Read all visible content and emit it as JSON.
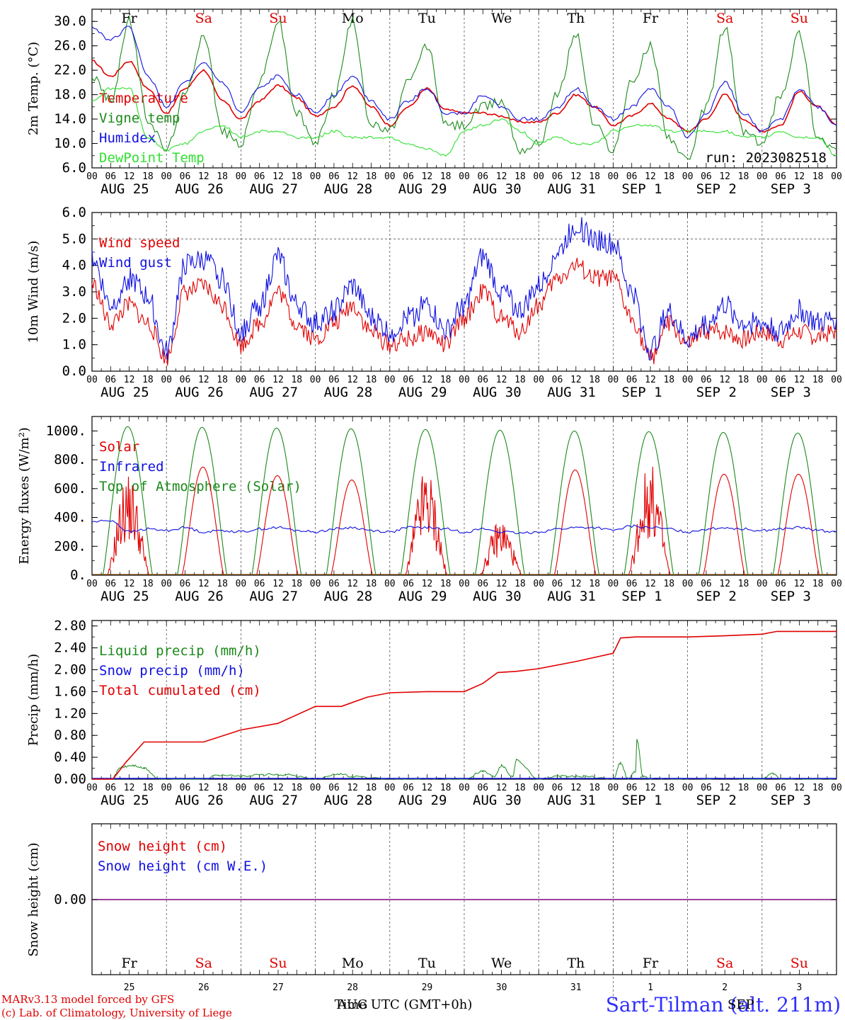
{
  "colors": {
    "red": "#e00000",
    "green": "#1a8a1a",
    "blue": "#1010e0",
    "lightgreen": "#30e030",
    "purple": "#800080"
  },
  "days": [
    "Fr",
    "Sa",
    "Su",
    "Mo",
    "Tu",
    "We",
    "Th",
    "Fr",
    "Sa",
    "Su"
  ],
  "weekend_days": [
    "Sa",
    "Su"
  ],
  "date_labels": [
    "AUG 25",
    "AUG 26",
    "AUG 27",
    "AUG 28",
    "AUG 29",
    "AUG 30",
    "AUG 31",
    "SEP  1",
    "SEP  2",
    "SEP  3"
  ],
  "hour_labels": [
    "00",
    "06",
    "12",
    "18"
  ],
  "hour_end_label": "00",
  "day_numbers": [
    "25",
    "26",
    "27",
    "28",
    "29",
    "30",
    "31",
    "1",
    "2",
    "3"
  ],
  "month_labels": [
    "AUG",
    "SEP"
  ],
  "x_axis_title": "Time UTC (GMT+0h)",
  "run_label": "run: 2023082518",
  "footer": [
    "MARv3.13 model forced by GFS",
    "(c) Lab. of Climatology, University of Liege"
  ],
  "station": "Sart-Tilman (alt. 211m)",
  "chart_data": [
    {
      "type": "line",
      "ylabel": "2m Temp. (°C)",
      "ylim": [
        6,
        32
      ],
      "yticks": [
        "30.0",
        "26.0",
        "22.0",
        "18.0",
        "14.0",
        "10.0",
        "6.0"
      ],
      "ytick_values": [
        30,
        26,
        22,
        18,
        14,
        10,
        6
      ],
      "x_days": [
        0,
        0.25,
        0.5,
        0.75,
        1,
        1.25,
        1.5,
        1.75,
        2,
        2.25,
        2.5,
        2.75,
        3,
        3.25,
        3.5,
        3.75,
        4,
        4.25,
        4.5,
        4.75,
        5,
        5.25,
        5.5,
        5.75,
        6,
        6.25,
        6.5,
        6.75,
        7,
        7.25,
        7.5,
        7.75,
        8,
        8.25,
        8.5,
        8.75,
        9,
        9.25,
        9.5,
        9.75,
        10
      ],
      "series": [
        {
          "name": "Temperature",
          "color": "red",
          "values": [
            23.5,
            21,
            23.5,
            19,
            15,
            19,
            22,
            17,
            14,
            17,
            19.5,
            17.5,
            14.5,
            16,
            19.5,
            16,
            13,
            16,
            19,
            15.5,
            15,
            15,
            14.5,
            13.5,
            13.5,
            15,
            18,
            16,
            13,
            14.5,
            16.5,
            14,
            12,
            14,
            18,
            14,
            12,
            13,
            18.5,
            16,
            13
          ]
        },
        {
          "name": "Vigne temp",
          "color": "green",
          "values": [
            21,
            17,
            30,
            14,
            9,
            18,
            28,
            12,
            10,
            20,
            30,
            15,
            10,
            18,
            30,
            13,
            12,
            20,
            26,
            13,
            13,
            16,
            17,
            9,
            10,
            18,
            28,
            13,
            9,
            20,
            26,
            11,
            7,
            16,
            29,
            12,
            10,
            18,
            28,
            11,
            9
          ]
        },
        {
          "name": "Humidex",
          "color": "blue",
          "values": [
            29,
            27,
            29,
            21,
            16,
            20,
            23,
            20,
            15,
            19,
            21,
            18,
            15,
            18,
            21,
            17,
            14,
            17,
            19,
            15,
            15,
            18,
            16,
            14,
            14,
            16,
            19,
            16,
            14,
            16,
            19,
            16,
            11,
            15,
            20,
            15,
            12,
            14,
            19,
            16,
            13
          ]
        },
        {
          "name": "DewPoint Temp",
          "color": "lightgreen",
          "values": [
            17,
            19,
            19,
            11,
            9,
            10,
            12,
            13,
            11,
            12,
            12,
            11,
            11,
            12,
            11,
            11,
            11,
            10,
            9,
            8,
            12,
            13,
            14,
            12,
            10,
            11,
            10,
            10,
            12,
            13,
            13,
            12,
            12,
            12,
            12,
            11,
            11,
            12,
            11,
            11,
            8
          ]
        }
      ]
    },
    {
      "type": "line",
      "ylabel": "10m Wind (m/s)",
      "ylim": [
        0,
        6
      ],
      "yticks": [
        "6.0",
        "5.0",
        "4.0",
        "3.0",
        "2.0",
        "1.0",
        "0.0"
      ],
      "ytick_values": [
        6,
        5,
        4,
        3,
        2,
        1,
        0
      ],
      "dotted_line": 5,
      "x_days": [
        0,
        0.25,
        0.5,
        0.75,
        1,
        1.25,
        1.5,
        1.75,
        2,
        2.25,
        2.5,
        2.75,
        3,
        3.25,
        3.5,
        3.75,
        4,
        4.25,
        4.5,
        4.75,
        5,
        5.25,
        5.5,
        5.75,
        6,
        6.25,
        6.5,
        6.75,
        7,
        7.25,
        7.5,
        7.75,
        8,
        8.25,
        8.5,
        8.75,
        9,
        9.25,
        9.5,
        9.75,
        10
      ],
      "series": [
        {
          "name": "Wind speed",
          "color": "red",
          "values": [
            3.3,
            1.8,
            2.5,
            1.8,
            0.5,
            3,
            3.2,
            2.5,
            1,
            1.8,
            3,
            1.8,
            1.2,
            1.8,
            2.5,
            1.5,
            1,
            1.2,
            1.5,
            1,
            2,
            3,
            2,
            1.5,
            2.5,
            3.5,
            4,
            3.5,
            3.5,
            2,
            0.5,
            1.8,
            1,
            1.5,
            1.5,
            1.2,
            1.5,
            1.2,
            1.5,
            1.3,
            1.5
          ]
        },
        {
          "name": "Wind gust",
          "color": "blue",
          "values": [
            4.3,
            2.5,
            3.5,
            2.8,
            0.7,
            4,
            4.2,
            3.5,
            1.5,
            2.5,
            4.3,
            2.5,
            1.8,
            2.3,
            3.2,
            2,
            1.5,
            2,
            2.5,
            1.5,
            2.5,
            4.3,
            3,
            2.3,
            3.2,
            4.5,
            5.5,
            5,
            4.8,
            3,
            0.8,
            2.2,
            1.2,
            1.8,
            2.5,
            1.8,
            1.8,
            1.5,
            2.3,
            1.8,
            2
          ]
        }
      ]
    },
    {
      "type": "line",
      "ylabel": "Energy fluxes (W/m²)",
      "ylim": [
        0,
        1100
      ],
      "yticks": [
        "1000.",
        "800.",
        "600.",
        "400.",
        "200.",
        "0."
      ],
      "ytick_values": [
        1000,
        800,
        600,
        400,
        200,
        0
      ],
      "toa_peaks": [
        1030,
        1025,
        1020,
        1015,
        1010,
        1005,
        1000,
        995,
        990,
        985
      ],
      "solar_peaks": [
        640,
        750,
        690,
        660,
        680,
        360,
        730,
        710,
        700,
        700
      ],
      "infrared_values": [
        370,
        380,
        300,
        320,
        310,
        330,
        300,
        310,
        300,
        320,
        330,
        310,
        300,
        320,
        330,
        310,
        300,
        330,
        330,
        320,
        300,
        320,
        300,
        290,
        300,
        320,
        330,
        330,
        310,
        340,
        330,
        320,
        300,
        320,
        330,
        320,
        310,
        320,
        330,
        310,
        300
      ],
      "series": [
        {
          "name": "Solar",
          "color": "red"
        },
        {
          "name": "Infrared",
          "color": "blue"
        },
        {
          "name": "Top of Atmosphere (Solar)",
          "color": "green"
        }
      ]
    },
    {
      "type": "line",
      "ylabel": "Precip (mm/h)",
      "ylim": [
        0,
        2.9
      ],
      "yticks": [
        "2.80",
        "2.40",
        "2.00",
        "1.60",
        "1.20",
        "0.80",
        "0.40",
        "0.00"
      ],
      "ytick_values": [
        2.8,
        2.4,
        2.0,
        1.6,
        1.2,
        0.8,
        0.4,
        0.0
      ],
      "cumulated_x": [
        0,
        0.28,
        0.45,
        0.7,
        1,
        1.5,
        2,
        2.5,
        3,
        3.35,
        3.7,
        4,
        4.5,
        5,
        5.25,
        5.45,
        5.7,
        6,
        6.5,
        7,
        7.1,
        7.3,
        7.7,
        8,
        8.5,
        9,
        9.2,
        10
      ],
      "cumulated_values": [
        0,
        0,
        0.3,
        0.68,
        0.68,
        0.68,
        0.9,
        1.02,
        1.33,
        1.33,
        1.5,
        1.58,
        1.6,
        1.6,
        1.75,
        1.95,
        1.97,
        2.02,
        2.15,
        2.3,
        2.58,
        2.6,
        2.6,
        2.6,
        2.62,
        2.65,
        2.7,
        2.7
      ],
      "liquid_x": [
        0,
        0.25,
        0.4,
        0.55,
        0.7,
        0.9,
        1,
        1.5,
        1.7,
        2,
        2.3,
        2.6,
        3,
        3.3,
        3.5,
        4,
        4.5,
        5,
        5.25,
        5.4,
        5.5,
        5.65,
        5.7,
        6,
        6.3,
        6.6,
        7,
        7.1,
        7.2,
        7.3,
        7.32,
        7.4,
        7.5,
        8,
        9,
        9.15,
        9.25,
        10
      ],
      "liquid_values": [
        0,
        0,
        0.22,
        0.25,
        0.2,
        0,
        0,
        0,
        0.08,
        0.05,
        0.08,
        0.08,
        0,
        0.1,
        0.05,
        0,
        0,
        0,
        0.15,
        0.05,
        0.25,
        0.05,
        0.35,
        0,
        0.05,
        0.05,
        0,
        0.3,
        0,
        0.15,
        0.72,
        0.05,
        0,
        0,
        0,
        0.1,
        0,
        0
      ],
      "series": [
        {
          "name": "Liquid precip (mm/h)",
          "color": "green"
        },
        {
          "name": "Snow precip (mm/h)",
          "color": "blue"
        },
        {
          "name": "Total cumulated (cm)",
          "color": "red"
        }
      ]
    },
    {
      "type": "line",
      "ylabel": "Snow height (cm)",
      "yticks": [
        "0.00"
      ],
      "ytick_values": [
        0
      ],
      "values": [
        0,
        0
      ],
      "series": [
        {
          "name": "Snow height (cm)",
          "color": "red"
        },
        {
          "name": "Snow height (cm W.E.)",
          "color": "blue"
        }
      ]
    }
  ]
}
